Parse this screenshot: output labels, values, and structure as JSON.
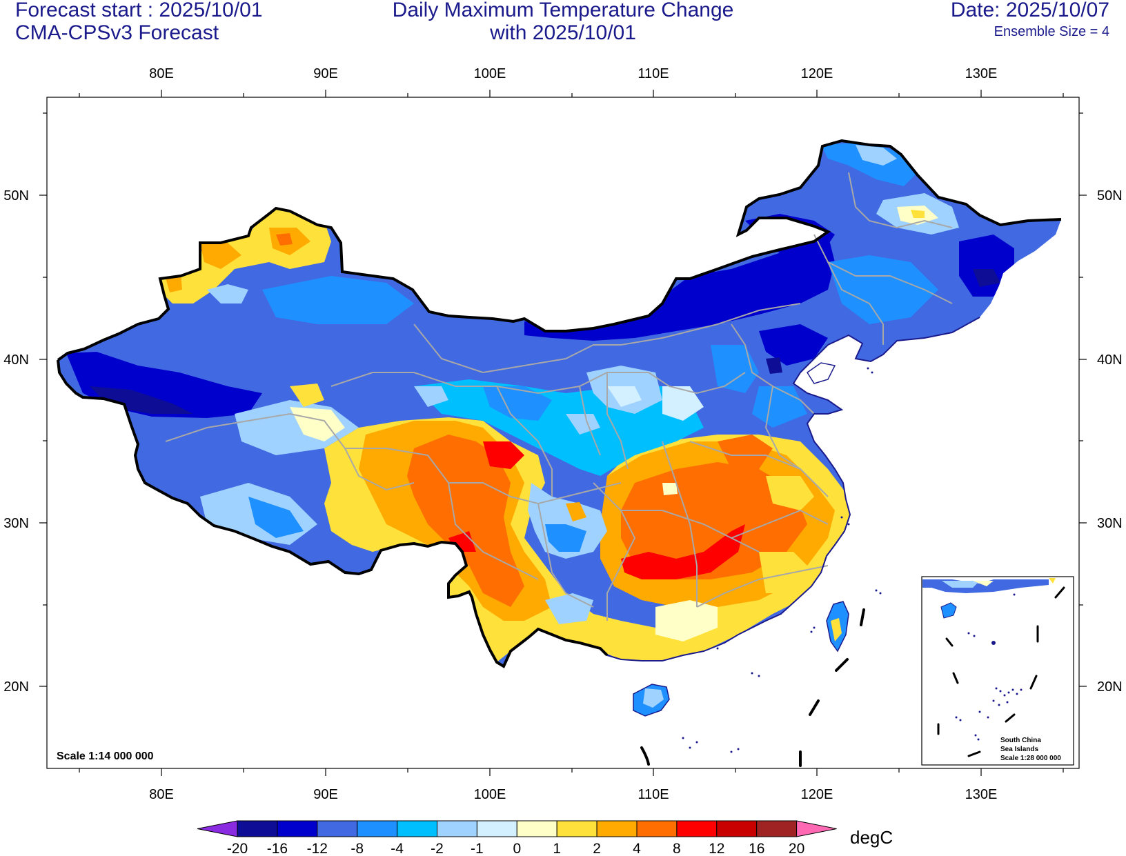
{
  "header": {
    "forecast_start": "Forecast start : 2025/10/01",
    "model": "CMA-CPSv3 Forecast",
    "title_line1": "Daily Maximum Temperature Change",
    "title_line2": "with 2025/10/01",
    "date": "Date: 2025/10/07",
    "ensemble": "Ensemble Size = 4"
  },
  "axes": {
    "lon_labels": [
      "80E",
      "90E",
      "100E",
      "110E",
      "120E",
      "130E"
    ],
    "lat_labels": [
      "50N",
      "40N",
      "30N",
      "20N"
    ]
  },
  "map": {
    "scale_label": "Scale 1:14 000 000",
    "inset": {
      "line1": "South China",
      "line2": "Sea Islands",
      "line3": "Scale 1:28 000 000"
    }
  },
  "colorbar": {
    "unit": "degC",
    "ticks": [
      "-20",
      "-16",
      "-12",
      "-8",
      "-4",
      "-2",
      "-1",
      "0",
      "1",
      "2",
      "4",
      "8",
      "12",
      "16",
      "20"
    ],
    "colors": [
      "#0d0d96",
      "#0000cd",
      "#4169e1",
      "#1e90ff",
      "#00bfff",
      "#a0d2ff",
      "#d2f0ff",
      "#ffffc8",
      "#ffe13c",
      "#ffaa00",
      "#ff6e00",
      "#ff0000",
      "#c80000",
      "#a02323"
    ],
    "low_color": "#8a2be2",
    "high_color": "#ff69b4"
  }
}
